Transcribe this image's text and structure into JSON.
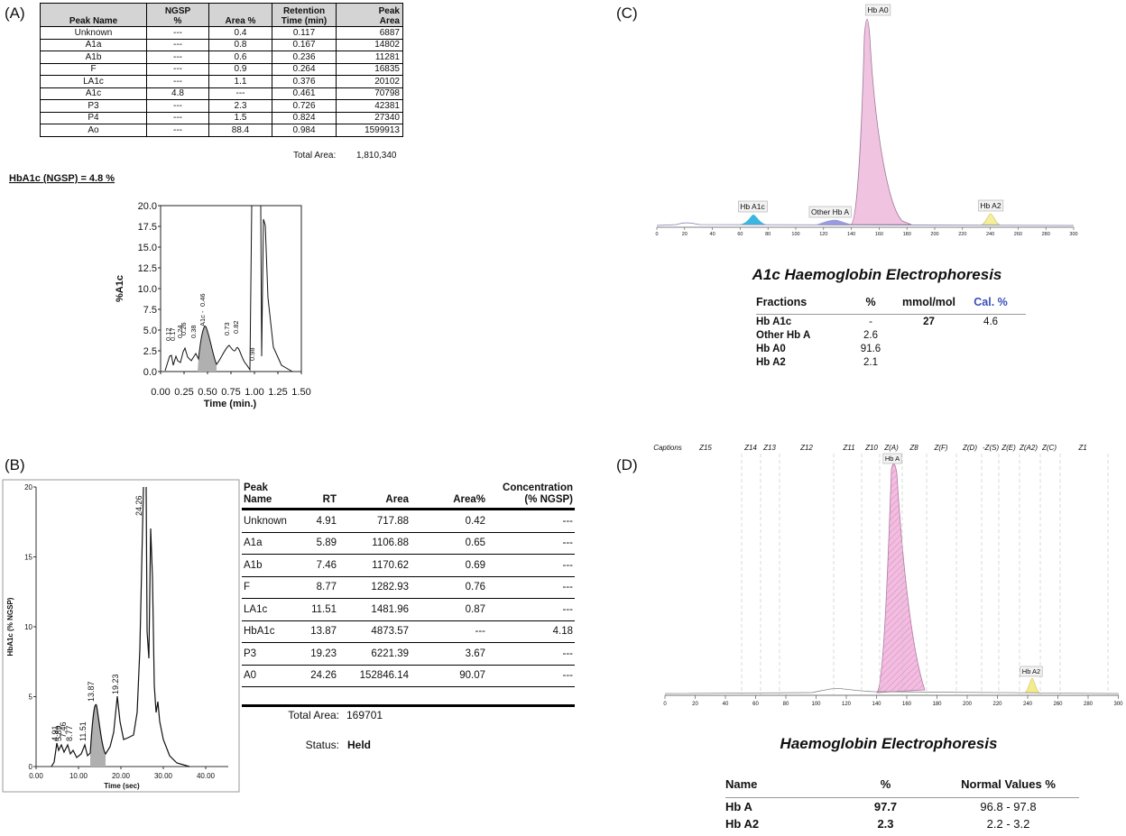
{
  "panel_a": {
    "label": "(A)",
    "table": {
      "columns": [
        "Peak Name",
        "NGSP %",
        "Area %",
        "Retention Time (min)",
        "Peak Area"
      ],
      "rows": [
        [
          "Unknown",
          "---",
          "0.4",
          "0.117",
          "6887"
        ],
        [
          "A1a",
          "---",
          "0.8",
          "0.167",
          "14802"
        ],
        [
          "A1b",
          "---",
          "0.6",
          "0.236",
          "11281"
        ],
        [
          "F",
          "---",
          "0.9",
          "0.264",
          "16835"
        ],
        [
          "LA1c",
          "---",
          "1.1",
          "0.376",
          "20102"
        ],
        [
          "A1c",
          "4.8",
          "---",
          "0.461",
          "70798"
        ],
        [
          "P3",
          "---",
          "2.3",
          "0.726",
          "42381"
        ],
        [
          "P4",
          "---",
          "1.5",
          "0.824",
          "27340"
        ],
        [
          "Ao",
          "---",
          "88.4",
          "0.984",
          "1599913"
        ]
      ]
    },
    "total_label": "Total Area:",
    "total_value": "1,810,340",
    "result": "HbA1c (NGSP) = 4.8  %",
    "chart": {
      "y_label": "%A1c",
      "x_label": "Time (min.)",
      "y_ticks": [
        "20.0",
        "17.5",
        "15.0",
        "12.5",
        "10.0",
        "7.5",
        "5.0",
        "2.5",
        "0.0"
      ],
      "x_ticks": [
        "0.00",
        "0.25",
        "0.50",
        "0.75",
        "1.00",
        "1.25",
        "1.50"
      ],
      "peak_labels": [
        "0.12",
        "0.17",
        "0.24",
        "0.26",
        "0.38",
        "A1c -",
        "0.46",
        "0.73",
        "0.82",
        "0.98"
      ]
    }
  },
  "panel_b": {
    "label": "(B)",
    "table": {
      "columns": [
        "Peak Name",
        "RT",
        "Area",
        "Area%",
        "Concentration (% NGSP)"
      ],
      "rows": [
        [
          "Unknown",
          "4.91",
          "717.88",
          "0.42",
          "---"
        ],
        [
          "A1a",
          "5.89",
          "1106.88",
          "0.65",
          "---"
        ],
        [
          "A1b",
          "7.46",
          "1170.62",
          "0.69",
          "---"
        ],
        [
          "F",
          "8.77",
          "1282.93",
          "0.76",
          "---"
        ],
        [
          "LA1c",
          "11.51",
          "1481.96",
          "0.87",
          "---"
        ],
        [
          "HbA1c",
          "13.87",
          "4873.57",
          "---",
          "4.18"
        ],
        [
          "P3",
          "19.23",
          "6221.39",
          "3.67",
          "---"
        ],
        [
          "A0",
          "24.26",
          "152846.14",
          "90.07",
          "---"
        ]
      ]
    },
    "total_label": "Total Area:",
    "total_value": "169701",
    "status_label": "Status:",
    "status_value": "Held",
    "chart": {
      "y_label": "HbA1c (% NGSP)",
      "x_label": "Time (sec)",
      "y_ticks": [
        "20",
        "15",
        "10",
        "5",
        "0"
      ],
      "x_ticks": [
        "0.00",
        "10.00",
        "20.00",
        "30.00",
        "40.00"
      ],
      "peak_labels": [
        "4.91",
        "5.89",
        "7.46",
        "8.77",
        "11.51",
        "13.87",
        "19.23",
        "24.26"
      ]
    }
  },
  "panel_c": {
    "label": "(C)",
    "peak_labels": [
      "Hb A0",
      "Hb A1c",
      "Other Hb A",
      "Hb A2"
    ],
    "x_ticks": [
      "0",
      "20",
      "40",
      "60",
      "80",
      "100",
      "120",
      "140",
      "160",
      "180",
      "200",
      "220",
      "240",
      "260",
      "280",
      "300"
    ],
    "title": "A1c Haemoglobin Electrophoresis",
    "table": {
      "columns": [
        "Fractions",
        "%",
        "mmol/mol",
        "Cal. %"
      ],
      "rows": [
        [
          "Hb A1c",
          "-",
          "27",
          "4.6"
        ],
        [
          "Other Hb A",
          "2.6",
          null,
          null
        ],
        [
          "Hb A0",
          "91.6",
          null,
          null
        ],
        [
          "Hb A2",
          "2.1",
          null,
          null
        ]
      ]
    }
  },
  "panel_d": {
    "label": "(D)",
    "zones": [
      "Captions",
      "Z15",
      "Z14",
      "Z13",
      "Z12",
      "Z11",
      "Z10",
      "Z(A)",
      "Z8",
      "Z(F)",
      "Z(D)",
      "-Z(S)",
      "Z(E)",
      "Z(A2)",
      "Z(C)",
      "Z1"
    ],
    "peak_labels": [
      "Hb A",
      "Hb A2"
    ],
    "x_ticks": [
      "0",
      "20",
      "40",
      "60",
      "80",
      "100",
      "120",
      "140",
      "160",
      "180",
      "200",
      "220",
      "240",
      "260",
      "280",
      "300"
    ],
    "title": "Haemoglobin Electrophoresis",
    "table": {
      "columns": [
        "Name",
        "%",
        "Normal Values %"
      ],
      "rows": [
        [
          "Hb A",
          "97.7",
          "96.8 - 97.8"
        ],
        [
          "Hb A2",
          "2.3",
          "2.2 -  3.2"
        ]
      ]
    }
  }
}
